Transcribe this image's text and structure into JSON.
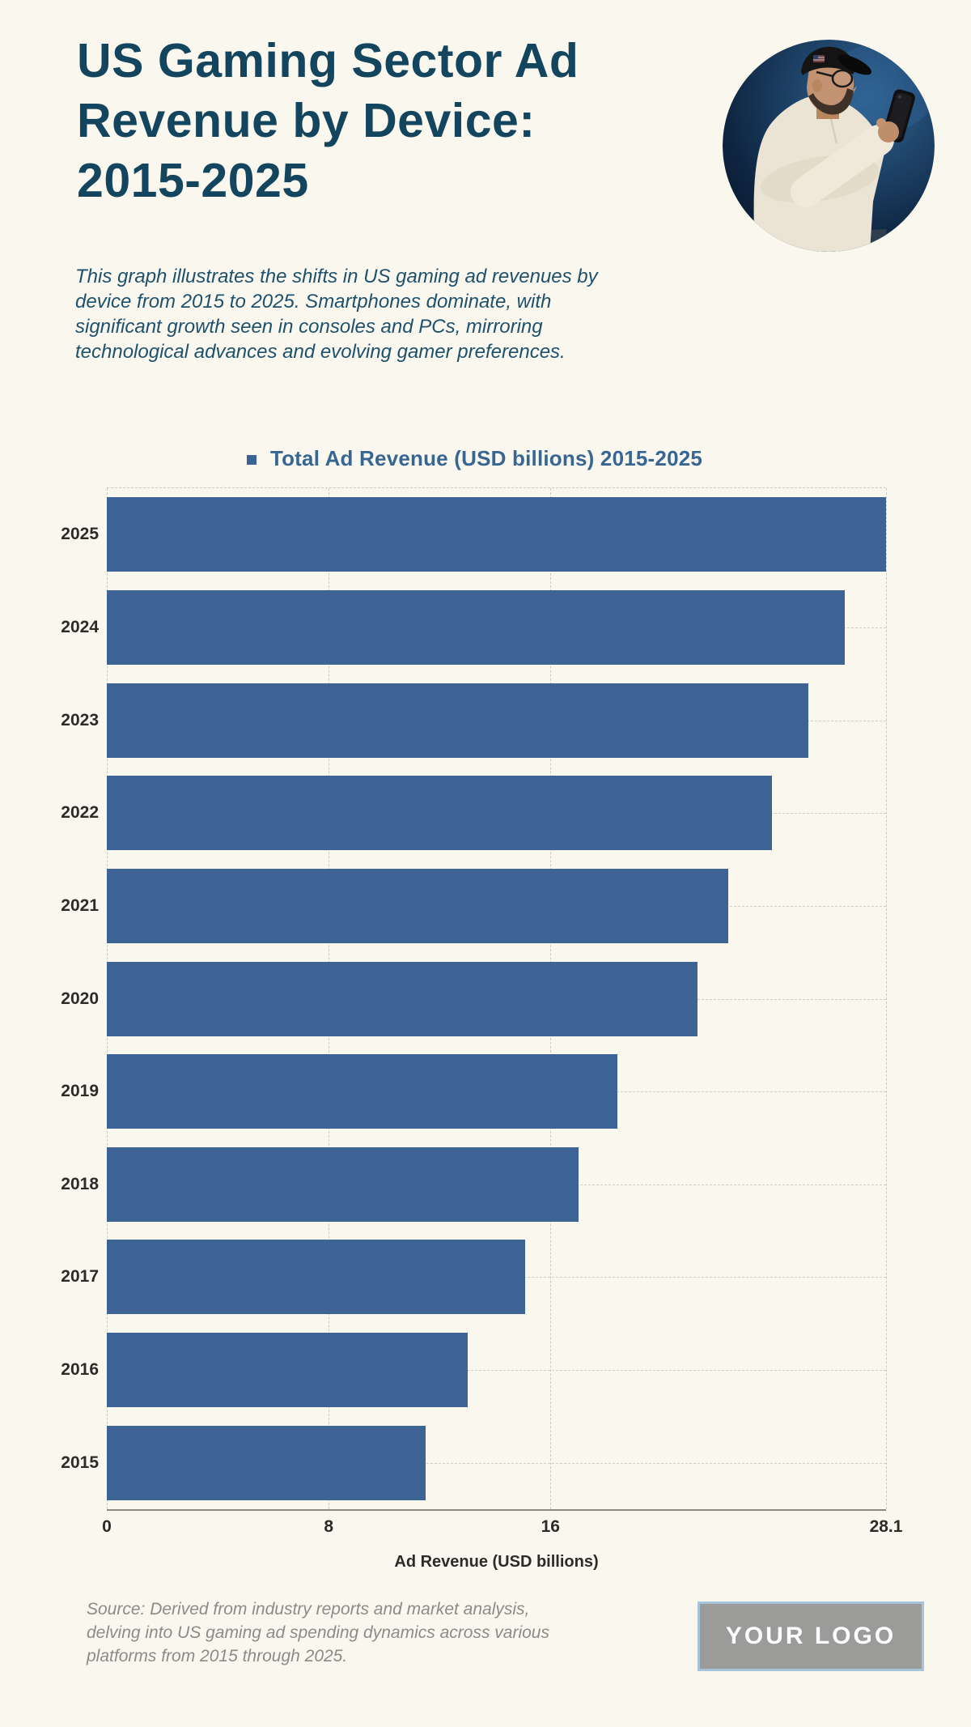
{
  "page": {
    "background": "#FAF7EE",
    "accent_blue": "#3D6495",
    "title_color": "#14455F"
  },
  "header": {
    "title_lines": [
      "US Gaming Sector Ad",
      "Revenue by Device:",
      "2015-2025"
    ],
    "description_lines": [
      "This graph illustrates the shifts in US gaming ad revenues by",
      "device from 2015 to 2025. Smartphones dominate, with",
      "significant growth seen in consoles and PCs, mirroring",
      "technological advances and evolving gamer preferences."
    ]
  },
  "chart_data": {
    "type": "bar",
    "orientation": "horizontal",
    "title": "Total Ad Revenue (USD billions) 2015-2025",
    "categories": [
      "2025",
      "2024",
      "2023",
      "2022",
      "2021",
      "2020",
      "2019",
      "2018",
      "2017",
      "2016",
      "2015"
    ],
    "values": [
      28.1,
      26.6,
      25.3,
      24.0,
      22.4,
      21.3,
      18.4,
      17.0,
      15.1,
      13.0,
      11.5
    ],
    "xlabel": "Ad Revenue (USD billions)",
    "xlim": [
      0,
      28.1
    ],
    "xticks": [
      {
        "label": "0",
        "value": 0
      },
      {
        "label": "8",
        "value": 8
      },
      {
        "label": "16",
        "value": 16
      },
      {
        "label": "28.1",
        "value": 28.1
      }
    ],
    "grid": "dashed",
    "legend_position": "top",
    "bar_color": "#3D6495",
    "legend_marker_color": "#3A6292"
  },
  "footer": {
    "source_lines": [
      "Source: Derived from industry reports and market analysis,",
      "delving into US gaming ad spending dynamics across various",
      "platforms from 2015 through 2025."
    ],
    "logo_text": "YOUR LOGO"
  }
}
